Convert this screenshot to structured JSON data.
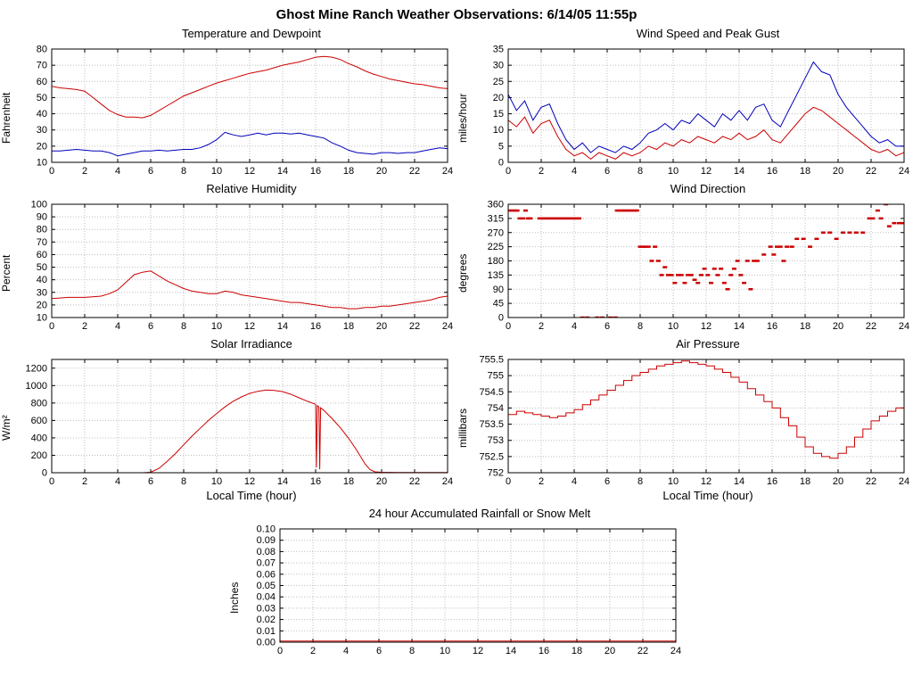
{
  "page_title": "Ghost Mine Ranch Weather Observations: 6/14/05 11:55p",
  "colors": {
    "red": "#cc0000",
    "blue": "#0000bb",
    "grid": "#bfbfbf",
    "axis": "#000000",
    "background": "#ffffff"
  },
  "x_axis_hours": [
    0,
    0.5,
    1,
    1.5,
    2,
    2.5,
    3,
    3.5,
    4,
    4.5,
    5,
    5.5,
    6,
    6.5,
    7,
    7.5,
    8,
    8.5,
    9,
    9.5,
    10,
    10.5,
    11,
    11.5,
    12,
    12.5,
    13,
    13.5,
    14,
    14.5,
    15,
    15.5,
    16,
    16.5,
    17,
    17.5,
    18,
    18.5,
    19,
    19.5,
    20,
    20.5,
    21,
    21.5,
    22,
    22.5,
    23,
    23.5,
    24
  ],
  "chart_data": [
    {
      "title": "Temperature and Dewpoint",
      "ylabel": "Fahrenheit",
      "xlabel": "",
      "type": "line",
      "xlim": [
        0,
        24
      ],
      "ylim": [
        10,
        80
      ],
      "xticks": [
        "0",
        "2",
        "4",
        "6",
        "8",
        "10",
        "12",
        "14",
        "16",
        "18",
        "20",
        "22",
        "24"
      ],
      "yticks": [
        "10",
        "20",
        "30",
        "40",
        "50",
        "60",
        "70",
        "80"
      ],
      "series": [
        {
          "name": "Temperature",
          "color": "red",
          "x_ref": "x_axis_hours",
          "y": [
            57,
            56,
            55.5,
            55,
            54,
            50,
            46,
            42,
            39.5,
            38,
            38,
            37.5,
            39,
            42,
            45,
            48,
            51,
            53,
            55,
            57,
            59,
            60.5,
            62,
            63.5,
            65,
            66,
            67,
            68.5,
            70,
            71,
            72,
            73.5,
            75,
            75.5,
            75,
            73.5,
            71,
            69,
            66.5,
            64.5,
            63,
            61.5,
            60.5,
            59.5,
            58.5,
            58,
            57,
            56,
            55.5
          ]
        },
        {
          "name": "Dewpoint",
          "color": "blue",
          "x_ref": "x_axis_hours",
          "y": [
            17,
            17,
            17.5,
            18,
            17.5,
            17,
            17,
            16,
            14,
            15,
            16,
            17,
            17,
            17.5,
            17,
            17.5,
            18,
            18,
            19,
            21,
            24,
            28.5,
            27,
            26,
            27,
            28,
            27,
            28,
            28,
            27.5,
            28,
            27,
            26,
            25,
            22,
            20,
            17.5,
            16,
            15.5,
            15,
            16,
            16,
            15.5,
            16,
            16,
            17,
            18,
            19,
            18.5
          ]
        }
      ]
    },
    {
      "title": "Wind Speed and Peak Gust",
      "ylabel": "miles/hour",
      "xlabel": "",
      "type": "line",
      "xlim": [
        0,
        24
      ],
      "ylim": [
        0,
        35
      ],
      "xticks": [
        "0",
        "2",
        "4",
        "6",
        "8",
        "10",
        "12",
        "14",
        "16",
        "18",
        "20",
        "22",
        "24"
      ],
      "yticks": [
        "0",
        "5",
        "10",
        "15",
        "20",
        "25",
        "30",
        "35"
      ],
      "series": [
        {
          "name": "Peak Gust",
          "color": "blue",
          "x_ref": "x_axis_hours",
          "y": [
            21,
            16,
            19,
            13,
            17,
            18,
            12,
            7,
            4,
            6,
            3,
            5,
            4,
            3,
            5,
            4,
            6,
            9,
            10,
            12,
            10,
            13,
            12,
            15,
            13,
            11,
            15,
            13,
            16,
            13,
            17,
            18,
            13,
            11,
            16,
            21,
            26,
            31,
            28,
            27,
            21,
            17,
            14,
            11,
            8,
            6,
            7,
            5,
            5
          ]
        },
        {
          "name": "Wind Speed",
          "color": "red",
          "x_ref": "x_axis_hours",
          "y": [
            13,
            11,
            14,
            9,
            12,
            13,
            8,
            4,
            2,
            3,
            1,
            3,
            2,
            1,
            3,
            2,
            3,
            5,
            4,
            6,
            5,
            7,
            6,
            8,
            7,
            6,
            8,
            7,
            9,
            7,
            8,
            10,
            7,
            6,
            9,
            12,
            15,
            17,
            16,
            14,
            12,
            10,
            8,
            6,
            4,
            3,
            4,
            2,
            3
          ]
        }
      ]
    },
    {
      "title": "Relative Humidity",
      "ylabel": "Percent",
      "xlabel": "",
      "type": "line",
      "xlim": [
        0,
        24
      ],
      "ylim": [
        10,
        100
      ],
      "xticks": [
        "0",
        "2",
        "4",
        "6",
        "8",
        "10",
        "12",
        "14",
        "16",
        "18",
        "20",
        "22",
        "24"
      ],
      "yticks": [
        "10",
        "20",
        "30",
        "40",
        "50",
        "60",
        "70",
        "80",
        "90",
        "100"
      ],
      "series": [
        {
          "name": "Relative Humidity",
          "color": "red",
          "x_ref": "x_axis_hours",
          "y": [
            25,
            25.5,
            26,
            26,
            26,
            26.5,
            27,
            29,
            32,
            38,
            44,
            46,
            47,
            43,
            39,
            36,
            33,
            31,
            30,
            29,
            29,
            31,
            30,
            28,
            27,
            26,
            25,
            24,
            23,
            22,
            22,
            21,
            20,
            19,
            18,
            18,
            17,
            17,
            18,
            18,
            19,
            19,
            20,
            21,
            22,
            23,
            24,
            26,
            27
          ]
        }
      ]
    },
    {
      "title": "Wind Direction",
      "ylabel": "degrees",
      "xlabel": "",
      "type": "scatter",
      "xlim": [
        0,
        24
      ],
      "ylim": [
        0,
        360
      ],
      "xticks": [
        "0",
        "2",
        "4",
        "6",
        "8",
        "10",
        "12",
        "14",
        "16",
        "18",
        "20",
        "22",
        "24"
      ],
      "yticks": [
        "0",
        "45",
        "90",
        "135",
        "180",
        "225",
        "270",
        "315",
        "360"
      ],
      "series": [
        {
          "name": "Wind Direction",
          "color": "red",
          "marker": "dash",
          "points": [
            [
              0.1,
              340
            ],
            [
              0.25,
              340
            ],
            [
              0.4,
              340
            ],
            [
              0.55,
              340
            ],
            [
              0.7,
              315
            ],
            [
              0.9,
              315
            ],
            [
              1.05,
              340
            ],
            [
              1.2,
              315
            ],
            [
              1.35,
              315
            ],
            [
              1.9,
              315
            ],
            [
              2.05,
              315
            ],
            [
              2.2,
              315
            ],
            [
              2.35,
              315
            ],
            [
              2.5,
              315
            ],
            [
              2.65,
              315
            ],
            [
              2.8,
              315
            ],
            [
              2.95,
              315
            ],
            [
              3.1,
              315
            ],
            [
              3.25,
              315
            ],
            [
              3.4,
              315
            ],
            [
              3.55,
              315
            ],
            [
              3.7,
              315
            ],
            [
              3.85,
              315
            ],
            [
              4.0,
              315
            ],
            [
              4.15,
              315
            ],
            [
              4.3,
              315
            ],
            [
              4.5,
              0
            ],
            [
              4.8,
              0
            ],
            [
              5.4,
              0
            ],
            [
              5.7,
              0
            ],
            [
              6.2,
              0
            ],
            [
              6.5,
              0
            ],
            [
              6.6,
              340
            ],
            [
              6.75,
              340
            ],
            [
              6.9,
              340
            ],
            [
              7.05,
              340
            ],
            [
              7.2,
              340
            ],
            [
              7.35,
              340
            ],
            [
              7.5,
              340
            ],
            [
              7.65,
              340
            ],
            [
              7.8,
              340
            ],
            [
              8.0,
              225
            ],
            [
              8.15,
              225
            ],
            [
              8.3,
              225
            ],
            [
              8.5,
              225
            ],
            [
              8.7,
              180
            ],
            [
              8.9,
              225
            ],
            [
              9.1,
              180
            ],
            [
              9.3,
              135
            ],
            [
              9.5,
              160
            ],
            [
              9.7,
              135
            ],
            [
              9.9,
              135
            ],
            [
              10.1,
              110
            ],
            [
              10.3,
              135
            ],
            [
              10.5,
              135
            ],
            [
              10.7,
              110
            ],
            [
              10.9,
              135
            ],
            [
              11.1,
              135
            ],
            [
              11.3,
              120
            ],
            [
              11.5,
              110
            ],
            [
              11.7,
              135
            ],
            [
              11.9,
              155
            ],
            [
              12.1,
              135
            ],
            [
              12.3,
              110
            ],
            [
              12.5,
              155
            ],
            [
              12.7,
              135
            ],
            [
              12.9,
              155
            ],
            [
              13.1,
              110
            ],
            [
              13.3,
              90
            ],
            [
              13.5,
              135
            ],
            [
              13.7,
              155
            ],
            [
              13.9,
              180
            ],
            [
              14.1,
              135
            ],
            [
              14.3,
              110
            ],
            [
              14.5,
              180
            ],
            [
              14.7,
              90
            ],
            [
              14.9,
              180
            ],
            [
              15.1,
              180
            ],
            [
              15.5,
              200
            ],
            [
              15.9,
              225
            ],
            [
              16.1,
              200
            ],
            [
              16.3,
              225
            ],
            [
              16.5,
              225
            ],
            [
              16.7,
              180
            ],
            [
              16.9,
              225
            ],
            [
              17.2,
              225
            ],
            [
              17.5,
              250
            ],
            [
              17.9,
              250
            ],
            [
              18.3,
              225
            ],
            [
              18.7,
              250
            ],
            [
              19.1,
              270
            ],
            [
              19.5,
              270
            ],
            [
              19.9,
              250
            ],
            [
              20.3,
              270
            ],
            [
              20.7,
              270
            ],
            [
              21.1,
              270
            ],
            [
              21.5,
              270
            ],
            [
              21.9,
              315
            ],
            [
              22.1,
              315
            ],
            [
              22.4,
              340
            ],
            [
              22.6,
              315
            ],
            [
              22.9,
              360
            ],
            [
              23.1,
              290
            ],
            [
              23.4,
              300
            ],
            [
              23.7,
              300
            ],
            [
              23.9,
              300
            ]
          ]
        }
      ]
    },
    {
      "title": "Solar Irradiance",
      "ylabel": "W/m²",
      "xlabel": "Local Time (hour)",
      "type": "line",
      "xlim": [
        0,
        24
      ],
      "ylim": [
        0,
        1300
      ],
      "xticks": [
        "0",
        "2",
        "4",
        "6",
        "8",
        "10",
        "12",
        "14",
        "16",
        "18",
        "20",
        "22",
        "24"
      ],
      "yticks": [
        "0",
        "200",
        "400",
        "600",
        "800",
        "1000",
        "1200"
      ],
      "series": [
        {
          "name": "Solar Irradiance",
          "color": "red",
          "x": [
            0,
            5.5,
            6,
            6.5,
            7,
            7.5,
            8,
            8.5,
            9,
            9.5,
            10,
            10.5,
            11,
            11.5,
            12,
            12.5,
            13,
            13.5,
            14,
            14.5,
            15,
            15.5,
            16,
            16.05,
            16.1,
            16.2,
            16.25,
            16.3,
            16.5,
            17,
            17.5,
            18,
            18.5,
            19,
            19.3,
            19.6,
            20,
            21,
            22,
            23,
            24
          ],
          "y": [
            0,
            0,
            5,
            50,
            130,
            220,
            320,
            420,
            510,
            600,
            680,
            755,
            820,
            870,
            910,
            935,
            950,
            945,
            930,
            900,
            860,
            820,
            785,
            60,
            770,
            755,
            40,
            745,
            715,
            620,
            515,
            395,
            255,
            100,
            35,
            10,
            5,
            3,
            2,
            2,
            2
          ]
        }
      ]
    },
    {
      "title": "Air Pressure",
      "ylabel": "millibars",
      "xlabel": "Local Time (hour)",
      "type": "line",
      "xlim": [
        0,
        24
      ],
      "ylim": [
        752,
        755.5
      ],
      "xticks": [
        "0",
        "2",
        "4",
        "6",
        "8",
        "10",
        "12",
        "14",
        "16",
        "18",
        "20",
        "22",
        "24"
      ],
      "yticks": [
        "752",
        "752.5",
        "753",
        "753.5",
        "754",
        "754.5",
        "755",
        "755.5"
      ],
      "series": [
        {
          "name": "Air Pressure",
          "color": "red",
          "step": true,
          "x_ref": "x_axis_hours",
          "y": [
            753.8,
            753.9,
            753.85,
            753.8,
            753.75,
            753.7,
            753.75,
            753.85,
            753.95,
            754.1,
            754.25,
            754.4,
            754.55,
            754.7,
            754.85,
            755.0,
            755.1,
            755.2,
            755.3,
            755.35,
            755.4,
            755.45,
            755.4,
            755.35,
            755.3,
            755.2,
            755.1,
            754.95,
            754.8,
            754.6,
            754.4,
            754.2,
            754.0,
            753.7,
            753.45,
            753.1,
            752.8,
            752.6,
            752.5,
            752.45,
            752.6,
            752.8,
            753.1,
            753.35,
            753.6,
            753.75,
            753.9,
            754.0,
            754.4
          ]
        }
      ]
    },
    {
      "title": "24 hour Accumulated Rainfall or Snow Melt",
      "ylabel": "Inches",
      "xlabel": "",
      "type": "line",
      "xlim": [
        0,
        24
      ],
      "ylim": [
        0,
        0.1
      ],
      "xticks": [
        "0",
        "2",
        "4",
        "6",
        "8",
        "10",
        "12",
        "14",
        "16",
        "18",
        "20",
        "22",
        "24"
      ],
      "yticks": [
        "0.00",
        "0.01",
        "0.02",
        "0.03",
        "0.04",
        "0.05",
        "0.06",
        "0.07",
        "0.08",
        "0.09",
        "0.10"
      ],
      "series": [
        {
          "name": "Accumulated Rainfall",
          "color": "red",
          "x": [
            0,
            24
          ],
          "y": [
            0.001,
            0.001
          ]
        }
      ]
    }
  ]
}
